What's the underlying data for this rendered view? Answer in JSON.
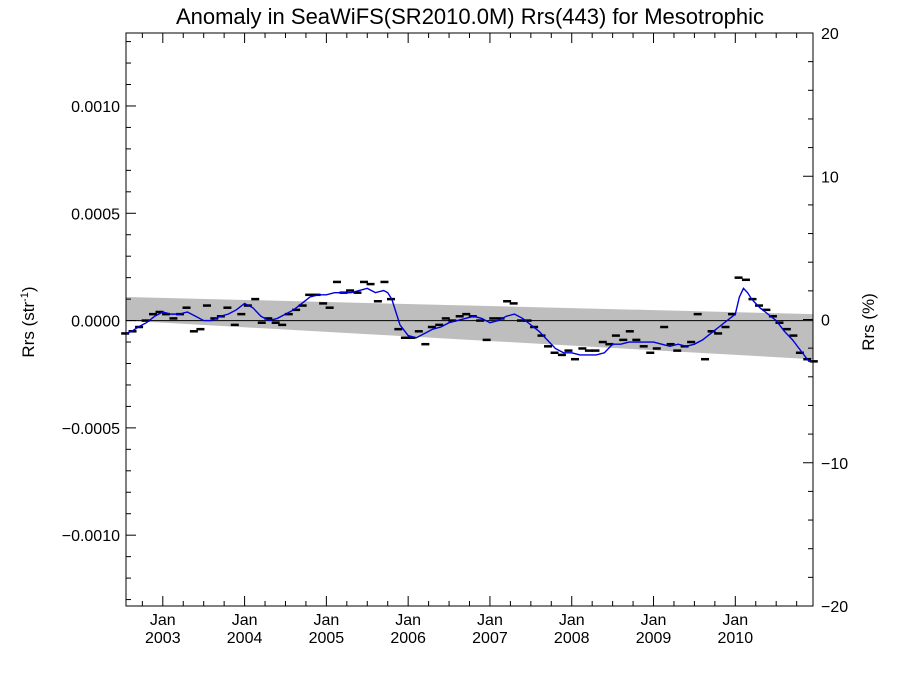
{
  "chart_data": {
    "type": "line",
    "title": "Anomaly in SeaWiFS(SR2010.0M) Rrs(443) for Mesotrophic",
    "ylabel_left": "Rrs (str",
    "ylabel_left_sup": "-1",
    "ylabel_left_close": ")",
    "ylabel_right": "Rrs (%)",
    "xlim": [
      2002.55,
      2010.95
    ],
    "ylim": [
      -0.00133,
      0.00134
    ],
    "ylim_right": [
      -20,
      20
    ],
    "grid": false,
    "y_ticks": [
      {
        "value": 0.001,
        "label": "0.0010"
      },
      {
        "value": 0.0005,
        "label": "0.0005"
      },
      {
        "value": 0.0,
        "label": "0.0000"
      },
      {
        "value": -0.0005,
        "label": "−0.0005"
      },
      {
        "value": -0.001,
        "label": "−0.0010"
      }
    ],
    "y_right_ticks": [
      {
        "value": 20,
        "label": "20"
      },
      {
        "value": 10,
        "label": "10"
      },
      {
        "value": 0,
        "label": "0"
      },
      {
        "value": -10,
        "label": "−10"
      },
      {
        "value": -20,
        "label": "−20"
      }
    ],
    "x_ticks": [
      {
        "value": 2003.0,
        "month": "Jan",
        "year": "2003"
      },
      {
        "value": 2004.0,
        "month": "Jan",
        "year": "2004"
      },
      {
        "value": 2005.0,
        "month": "Jan",
        "year": "2005"
      },
      {
        "value": 2006.0,
        "month": "Jan",
        "year": "2006"
      },
      {
        "value": 2007.0,
        "month": "Jan",
        "year": "2007"
      },
      {
        "value": 2008.0,
        "month": "Jan",
        "year": "2008"
      },
      {
        "value": 2009.0,
        "month": "Jan",
        "year": "2009"
      },
      {
        "value": 2010.0,
        "month": "Jan",
        "year": "2010"
      }
    ],
    "trend_band": {
      "start": {
        "x": 2002.55,
        "upper": 0.00011,
        "lower": 0.0
      },
      "end": {
        "x": 2010.95,
        "upper": 3e-05,
        "lower": -0.00018
      }
    },
    "zero_line": 0,
    "monthly_anomalies": {
      "x": [
        2002.54,
        2002.63,
        2002.71,
        2002.79,
        2002.88,
        2002.96,
        2003.04,
        2003.13,
        2003.21,
        2003.29,
        2003.38,
        2003.46,
        2003.54,
        2003.63,
        2003.71,
        2003.79,
        2003.88,
        2003.96,
        2004.04,
        2004.13,
        2004.21,
        2004.29,
        2004.38,
        2004.46,
        2004.54,
        2004.63,
        2004.71,
        2004.79,
        2004.88,
        2004.96,
        2005.04,
        2005.13,
        2005.21,
        2005.29,
        2005.38,
        2005.46,
        2005.54,
        2005.63,
        2005.71,
        2005.79,
        2005.88,
        2005.96,
        2006.04,
        2006.13,
        2006.21,
        2006.29,
        2006.38,
        2006.46,
        2006.54,
        2006.63,
        2006.71,
        2006.79,
        2006.88,
        2006.96,
        2007.04,
        2007.13,
        2007.21,
        2007.29,
        2007.38,
        2007.46,
        2007.54,
        2007.63,
        2007.71,
        2007.79,
        2007.88,
        2007.96,
        2008.04,
        2008.13,
        2008.21,
        2008.29,
        2008.38,
        2008.46,
        2008.54,
        2008.63,
        2008.71,
        2008.79,
        2008.88,
        2008.96,
        2009.04,
        2009.13,
        2009.21,
        2009.29,
        2009.38,
        2009.46,
        2009.54,
        2009.63,
        2009.71,
        2009.79,
        2009.88,
        2009.96,
        2010.04,
        2010.13,
        2010.21,
        2010.29,
        2010.38,
        2010.46,
        2010.54,
        2010.63,
        2010.71,
        2010.79,
        2010.88,
        2010.96
      ],
      "y": [
        -6e-05,
        -5e-05,
        -3e-05,
        0.0,
        3e-05,
        4e-05,
        3e-05,
        1e-05,
        3e-05,
        6e-05,
        -5e-05,
        -4e-05,
        7e-05,
        1e-05,
        2e-05,
        6e-05,
        -2e-05,
        3e-05,
        7e-05,
        0.0001,
        -1e-05,
        1e-05,
        -1e-05,
        -2e-05,
        3e-05,
        5e-05,
        7e-05,
        0.00012,
        0.00012,
        8e-05,
        6e-05,
        0.00018,
        0.00013,
        0.00014,
        0.00013,
        0.00018,
        0.00017,
        9e-05,
        0.00018,
        0.0001,
        -4e-05,
        -8e-05,
        -8e-05,
        -5e-05,
        -0.00011,
        -3e-05,
        -2e-05,
        1e-05,
        0.0,
        2e-05,
        3e-05,
        2e-05,
        0.0,
        -9e-05,
        1e-05,
        1e-05,
        9e-05,
        8e-05,
        0.0,
        0.0,
        -3e-05,
        -7e-05,
        -0.00012,
        -0.00015,
        -0.00016,
        -0.00014,
        -0.00018,
        -0.00013,
        -0.00014,
        -0.00014,
        -0.0001,
        -0.00011,
        -7e-05,
        -9e-05,
        -5e-05,
        -9e-05,
        -0.00012,
        -0.00015,
        -0.00013,
        -3e-05,
        -0.00011,
        -0.00014,
        -0.00012,
        -0.0001,
        3e-05,
        -0.00018,
        -5e-05,
        -6e-05,
        -3e-05,
        3e-05,
        0.0002,
        0.00019,
        0.0001,
        7e-05,
        5e-05,
        2e-05,
        -1e-05,
        -4e-05,
        -7e-05,
        -0.00015,
        -0.00018,
        -0.00019
      ]
    },
    "running_mean": {
      "x": [
        2002.55,
        2002.62,
        2002.7,
        2002.8,
        2002.9,
        2003.0,
        2003.1,
        2003.2,
        2003.3,
        2003.4,
        2003.5,
        2003.6,
        2003.7,
        2003.8,
        2003.9,
        2004.0,
        2004.1,
        2004.2,
        2004.3,
        2004.4,
        2004.5,
        2004.6,
        2004.7,
        2004.8,
        2004.9,
        2005.0,
        2005.1,
        2005.2,
        2005.3,
        2005.4,
        2005.5,
        2005.6,
        2005.7,
        2005.75,
        2005.8,
        2005.85,
        2005.9,
        2006.0,
        2006.1,
        2006.2,
        2006.3,
        2006.4,
        2006.5,
        2006.6,
        2006.7,
        2006.8,
        2006.9,
        2007.0,
        2007.1,
        2007.2,
        2007.3,
        2007.4,
        2007.5,
        2007.6,
        2007.7,
        2007.8,
        2007.9,
        2008.0,
        2008.1,
        2008.2,
        2008.3,
        2008.4,
        2008.5,
        2008.6,
        2008.7,
        2008.8,
        2008.9,
        2009.0,
        2009.1,
        2009.2,
        2009.3,
        2009.4,
        2009.5,
        2009.6,
        2009.7,
        2009.8,
        2009.9,
        2010.0,
        2010.05,
        2010.1,
        2010.15,
        2010.2,
        2010.3,
        2010.4,
        2010.5,
        2010.6,
        2010.7,
        2010.8,
        2010.9,
        2010.95
      ],
      "y": [
        -6e-05,
        -5e-05,
        -3e-05,
        -1e-05,
        2e-05,
        4e-05,
        3e-05,
        3e-05,
        4e-05,
        2e-05,
        0.0,
        0.0,
        2e-05,
        3e-05,
        5e-05,
        8e-05,
        6e-05,
        2e-05,
        0.0,
        1e-05,
        3e-05,
        5e-05,
        8e-05,
        0.00011,
        0.00012,
        0.00012,
        0.00013,
        0.00013,
        0.00013,
        0.00014,
        0.00015,
        0.00013,
        0.00014,
        0.00013,
        0.0001,
        4e-05,
        -2e-05,
        -7e-05,
        -8e-05,
        -6e-05,
        -4e-05,
        -3e-05,
        -1e-05,
        0.0,
        1e-05,
        2e-05,
        1e-05,
        -1e-05,
        0.0,
        2e-05,
        3e-05,
        1e-05,
        -2e-05,
        -5e-05,
        -9e-05,
        -0.00013,
        -0.00015,
        -0.00015,
        -0.00016,
        -0.00016,
        -0.00016,
        -0.00015,
        -0.00011,
        -0.00011,
        -0.0001,
        -0.0001,
        -0.0001,
        -0.0001,
        -0.00011,
        -0.00012,
        -0.00011,
        -0.00012,
        -0.00011,
        -9e-05,
        -6e-05,
        -3e-05,
        0.0,
        3e-05,
        0.00011,
        0.00015,
        0.00013,
        0.0001,
        6e-05,
        3e-05,
        0.0,
        -5e-05,
        -9e-05,
        -0.00014,
        -0.00019,
        -0.00019
      ]
    },
    "colors": {
      "running_mean": "#0000dd",
      "band": "#bebebe",
      "markers": "#000000",
      "axes": "#000000"
    }
  }
}
